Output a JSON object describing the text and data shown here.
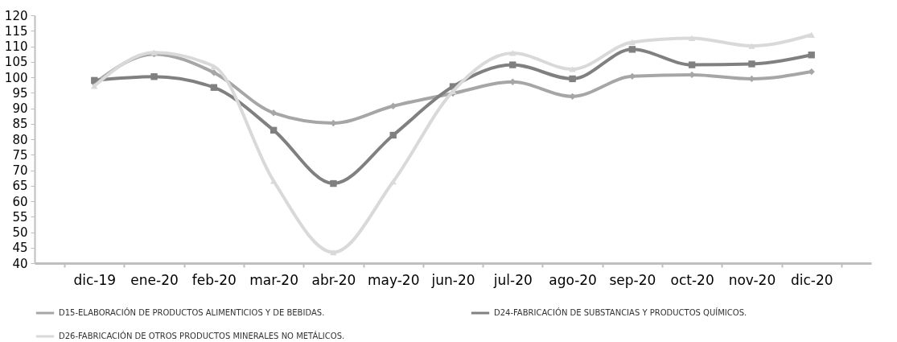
{
  "chart_data": {
    "type": "line",
    "categories": [
      "dic-19",
      "ene-20",
      "feb-20",
      "mar-20",
      "abr-20",
      "may-20",
      "jun-20",
      "jul-20",
      "ago-20",
      "sep-20",
      "oct-20",
      "nov-20",
      "dic-20"
    ],
    "series": [
      {
        "name": "D15-ELABORACIÓN DE PRODUCTOS ALIMENTICIOS Y DE BEBIDAS.",
        "color": "#a6a6a6",
        "marker": "diamond",
        "values": [
          98,
          107.5,
          101.5,
          88.5,
          85.2,
          90.7,
          94.8,
          98.5,
          93.8,
          100.3,
          100.8,
          99.5,
          101.8
        ]
      },
      {
        "name": "D24-FABRICACIÓN DE SUBSTANCIAS Y PRODUCTOS QUÍMICOS.",
        "color": "#808080",
        "marker": "square",
        "values": [
          99,
          100.2,
          96.7,
          82.9,
          65.7,
          81.3,
          97,
          104,
          99.5,
          109,
          104,
          104.3,
          107.2
        ]
      },
      {
        "name": "D26-FABRICACIÓN DE OTROS PRODUCTOS MINERALES NO METÁLICOS.",
        "color": "#d9d9d9",
        "marker": "triangle",
        "values": [
          97.2,
          108,
          103.5,
          66.5,
          43.5,
          66.3,
          95.5,
          107.8,
          102.6,
          111.3,
          112.6,
          110.1,
          113.7
        ]
      }
    ],
    "ylim": [
      40,
      120
    ],
    "yticks": [
      40,
      45,
      50,
      55,
      60,
      65,
      70,
      75,
      80,
      85,
      90,
      95,
      100,
      105,
      110,
      115,
      120
    ],
    "grid": false,
    "legend": "bottom",
    "line_style": "solid"
  }
}
